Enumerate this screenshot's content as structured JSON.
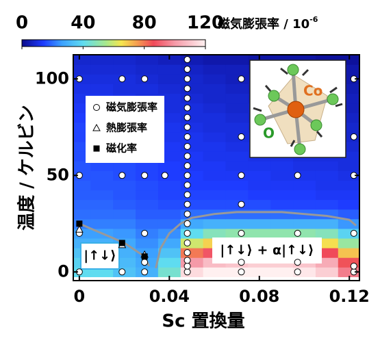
{
  "chart_data": {
    "type": "heatmap",
    "colorbar_label": "磁気膨張率 / 10",
    "colorbar_label_exp": "-6",
    "clim": [
      0,
      120
    ],
    "cticks": [
      0,
      40,
      80,
      120
    ],
    "colormap": [
      {
        "value": 0,
        "color": "#0a0a8a"
      },
      {
        "value": 14,
        "color": "#1e3cff"
      },
      {
        "value": 26,
        "color": "#3ca0ff"
      },
      {
        "value": 40,
        "color": "#5fdcf0"
      },
      {
        "value": 55,
        "color": "#a8e88c"
      },
      {
        "value": 65,
        "color": "#f5e650"
      },
      {
        "value": 75,
        "color": "#f5a050"
      },
      {
        "value": 86,
        "color": "#f04a5a"
      },
      {
        "value": 100,
        "color": "#f59aa8"
      },
      {
        "value": 120,
        "color": "#fff0f0"
      }
    ],
    "x_label": "Sc 置換量",
    "y_label": "温度 / ケルビン",
    "xlim": [
      -0.0027,
      0.1245
    ],
    "ylim": [
      -4.5,
      112.5
    ],
    "xticks": [
      0,
      0.04,
      0.08,
      0.12
    ],
    "yticks": [
      0,
      50,
      100
    ],
    "heatmap": {
      "x": [
        0,
        0.01,
        0.02,
        0.03,
        0.04,
        0.05,
        0.06,
        0.07,
        0.08,
        0.09,
        0.1,
        0.11,
        0.12
      ],
      "y": [
        0,
        5,
        10,
        15,
        20,
        25,
        30,
        35,
        40,
        45,
        50,
        55,
        60,
        65,
        70,
        75,
        80,
        85,
        90,
        95,
        100,
        105,
        110
      ],
      "z": [
        [
          40,
          40,
          34,
          30,
          45,
          115,
          120,
          120,
          120,
          120,
          118,
          112,
          95
        ],
        [
          38,
          38,
          32,
          28,
          40,
          100,
          108,
          110,
          112,
          112,
          110,
          104,
          85
        ],
        [
          34,
          34,
          30,
          26,
          34,
          80,
          88,
          90,
          92,
          92,
          90,
          86,
          70
        ],
        [
          30,
          30,
          28,
          24,
          28,
          60,
          68,
          70,
          70,
          70,
          70,
          66,
          52
        ],
        [
          26,
          26,
          25,
          22,
          24,
          40,
          48,
          50,
          50,
          50,
          50,
          48,
          38
        ],
        [
          22,
          22,
          22,
          20,
          20,
          28,
          30,
          30,
          30,
          30,
          30,
          30,
          25
        ],
        [
          20,
          20,
          20,
          18,
          18,
          20,
          20,
          20,
          20,
          20,
          20,
          20,
          18
        ],
        [
          19,
          19,
          18,
          17,
          16,
          16,
          16,
          16,
          16,
          15,
          15,
          15,
          14
        ],
        [
          18,
          18,
          17,
          16,
          15,
          15,
          15,
          15,
          14,
          14,
          14,
          13,
          13
        ],
        [
          18,
          17,
          17,
          16,
          15,
          14,
          14,
          14,
          13,
          13,
          13,
          12,
          12
        ],
        [
          17,
          17,
          16,
          15,
          14,
          14,
          13,
          13,
          13,
          12,
          12,
          12,
          11
        ],
        [
          17,
          16,
          16,
          15,
          14,
          13,
          13,
          12,
          12,
          12,
          11,
          11,
          10
        ],
        [
          16,
          16,
          15,
          14,
          13,
          13,
          12,
          12,
          11,
          11,
          10,
          10,
          10
        ],
        [
          16,
          15,
          15,
          14,
          13,
          12,
          12,
          11,
          11,
          10,
          10,
          9,
          9
        ],
        [
          15,
          15,
          14,
          13,
          12,
          12,
          11,
          10,
          10,
          9,
          9,
          9,
          8
        ],
        [
          15,
          14,
          14,
          13,
          12,
          11,
          10,
          10,
          9,
          9,
          8,
          8,
          8
        ],
        [
          14,
          14,
          13,
          12,
          11,
          10,
          10,
          9,
          8,
          8,
          8,
          7,
          7
        ],
        [
          13,
          13,
          12,
          11,
          10,
          10,
          9,
          8,
          8,
          7,
          7,
          7,
          6
        ],
        [
          12,
          12,
          11,
          10,
          10,
          9,
          8,
          8,
          7,
          7,
          6,
          6,
          6
        ],
        [
          11,
          11,
          10,
          10,
          9,
          8,
          8,
          7,
          6,
          6,
          6,
          5,
          5
        ],
        [
          10,
          10,
          10,
          9,
          8,
          8,
          7,
          6,
          6,
          5,
          5,
          5,
          4
        ],
        [
          9,
          9,
          9,
          8,
          8,
          7,
          6,
          6,
          5,
          5,
          4,
          4,
          4
        ],
        [
          8,
          8,
          8,
          7,
          6,
          5,
          4,
          4,
          3,
          3,
          3,
          2,
          2
        ]
      ]
    },
    "markers": [
      {
        "name": "磁気膨張率",
        "shape": "circle",
        "x": [
          0,
          0,
          0,
          0,
          0.019,
          0.019,
          0.019,
          0.029,
          0.029,
          0.029,
          0.029,
          0.029,
          0.038,
          0.048,
          0.048,
          0.048,
          0.048,
          0.048,
          0.048,
          0.048,
          0.048,
          0.048,
          0.048,
          0.048,
          0.048,
          0.048,
          0.048,
          0.048,
          0.048,
          0.048,
          0.048,
          0.048,
          0.048,
          0.048,
          0.048,
          0.048,
          0.048,
          0.072,
          0.072,
          0.072,
          0.072,
          0.072,
          0.072,
          0.072,
          0.097,
          0.097,
          0.097,
          0.097,
          0.122,
          0.122,
          0.122,
          0.122,
          0.122,
          0.122
        ],
        "y": [
          0,
          20,
          50,
          100,
          0,
          50,
          100,
          0,
          5,
          20,
          50,
          100,
          50,
          0,
          3,
          6,
          10,
          15,
          20,
          25,
          30,
          35,
          40,
          45,
          50,
          55,
          60,
          65,
          70,
          75,
          80,
          85,
          90,
          95,
          100,
          105,
          110,
          0,
          5,
          20,
          35,
          50,
          70,
          100,
          0,
          5,
          20,
          50,
          0,
          3,
          20,
          50,
          70,
          100
        ]
      },
      {
        "name": "熱膨張率",
        "shape": "triangle",
        "x": [
          0,
          0.019,
          0.029
        ],
        "y": [
          22,
          14,
          9
        ]
      },
      {
        "name": "磁化率",
        "shape": "square",
        "x": [
          0,
          0.019,
          0.029
        ],
        "y": [
          25,
          15,
          8
        ]
      }
    ],
    "boundaries": [
      {
        "color": "#999999",
        "x": [
          0,
          0.01,
          0.02,
          0.029,
          0.031
        ],
        "y": [
          25,
          20,
          15,
          8,
          3
        ]
      },
      {
        "color": "#999999",
        "x": [
          0.034,
          0.036,
          0.04,
          0.045,
          0.05,
          0.06,
          0.07,
          0.08,
          0.09,
          0.1,
          0.11,
          0.12,
          0.123
        ],
        "y": [
          2,
          12,
          20,
          25,
          28,
          30,
          31,
          31,
          31,
          30,
          29,
          27,
          24
        ]
      }
    ],
    "annotations": [
      "|↑↓⟩",
      "|↑↓⟩ + α|↑↓⟩"
    ],
    "inset_labels": [
      "Co",
      "O"
    ]
  }
}
